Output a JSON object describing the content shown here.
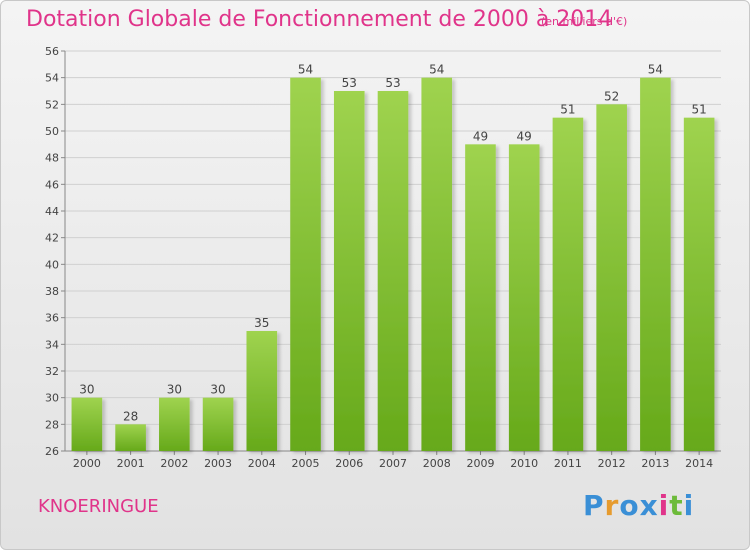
{
  "title": "Dotation Globale de Fonctionnement de 2000 à 2014",
  "subtitle": "(en milliers d'€)",
  "city": "KNOERINGUE",
  "logo": {
    "letters": [
      "P",
      "r",
      "o",
      "x",
      "i",
      "t",
      "i"
    ],
    "colors": [
      "#3a8fd6",
      "#e69b2e",
      "#3a8fd6",
      "#3a8fd6",
      "#e0348a",
      "#6dbb3a",
      "#3a8fd6"
    ]
  },
  "colors": {
    "accent": "#e0348a",
    "bar_light": "#9fd34f",
    "bar_dark": "#66a91a"
  },
  "chart_data": {
    "type": "bar",
    "categories": [
      "2000",
      "2001",
      "2002",
      "2003",
      "2004",
      "2005",
      "2006",
      "2007",
      "2008",
      "2009",
      "2010",
      "2011",
      "2012",
      "2013",
      "2014"
    ],
    "values": [
      30,
      28,
      30,
      30,
      35,
      54,
      53,
      53,
      54,
      49,
      49,
      51,
      52,
      54,
      51
    ],
    "title": "Dotation Globale de Fonctionnement de 2000 à 2014",
    "xlabel": "",
    "ylabel": "",
    "ylim": [
      26,
      56
    ],
    "yticks": [
      26,
      28,
      30,
      32,
      34,
      36,
      38,
      40,
      42,
      44,
      46,
      48,
      50,
      52,
      54,
      56
    ],
    "grid": true,
    "data_labels": true
  }
}
